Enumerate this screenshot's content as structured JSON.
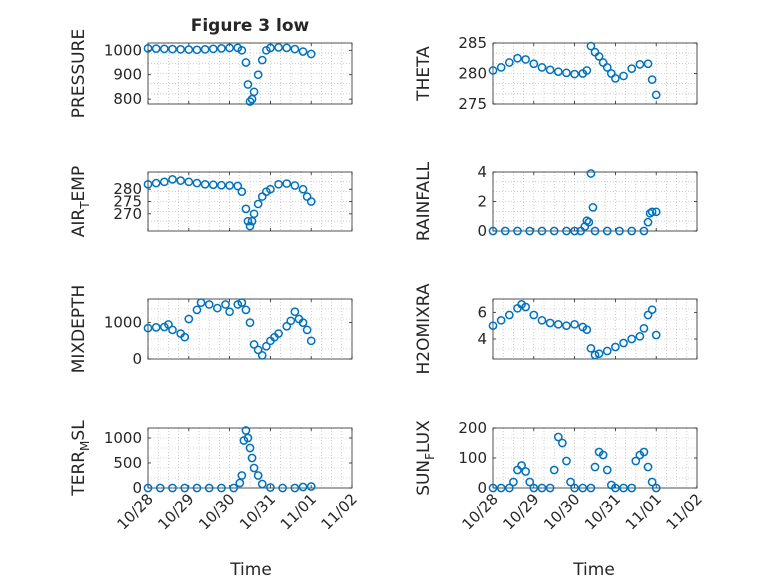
{
  "title": "Figure 3 low",
  "xlabel": "Time",
  "colors": {
    "marker": "#0072BD",
    "axis": "#262626",
    "grid": "#b0b0b0"
  },
  "chart_data": [
    {
      "type": "scatter",
      "ylabel": "PRESSURE",
      "ylim": [
        780,
        1030
      ],
      "yticks": [
        800,
        900,
        1000
      ],
      "ytick_labels": [
        "800",
        "900",
        "1000"
      ],
      "x": [
        0,
        0.2,
        0.4,
        0.6,
        0.8,
        1.0,
        1.2,
        1.4,
        1.6,
        1.8,
        2.0,
        2.2,
        2.3,
        2.4,
        2.45,
        2.5,
        2.55,
        2.6,
        2.7,
        2.8,
        2.9,
        3.0,
        3.2,
        3.4,
        3.6,
        3.8,
        4.0
      ],
      "y": [
        1008,
        1007,
        1006,
        1005,
        1004,
        1003,
        1002,
        1004,
        1006,
        1008,
        1010,
        1010,
        1000,
        950,
        860,
        790,
        800,
        830,
        900,
        960,
        1000,
        1010,
        1012,
        1010,
        1005,
        995,
        985
      ]
    },
    {
      "type": "scatter",
      "ylabel": "THETA",
      "ylim": [
        275,
        285
      ],
      "yticks": [
        275,
        280,
        285
      ],
      "ytick_labels": [
        "275",
        "280",
        "285"
      ],
      "x": [
        0,
        0.2,
        0.4,
        0.6,
        0.8,
        1.0,
        1.2,
        1.4,
        1.6,
        1.8,
        2.0,
        2.2,
        2.3,
        2.4,
        2.5,
        2.6,
        2.7,
        2.8,
        2.9,
        3.0,
        3.2,
        3.4,
        3.6,
        3.8,
        3.9,
        4.0
      ],
      "y": [
        280.5,
        281,
        281.8,
        282.5,
        282.3,
        281.6,
        281,
        280.6,
        280.3,
        280.1,
        279.9,
        280,
        280.5,
        284.5,
        283.5,
        282.8,
        281.8,
        281,
        280,
        279.2,
        279.6,
        280.8,
        281.5,
        281.6,
        279,
        276.5
      ]
    },
    {
      "type": "scatter",
      "ylabel": "AIR_TEMP",
      "ylim": [
        263,
        287
      ],
      "yticks": [
        270,
        275,
        280
      ],
      "ytick_labels": [
        "270",
        "275",
        "280"
      ],
      "x": [
        0,
        0.2,
        0.4,
        0.6,
        0.8,
        1.0,
        1.2,
        1.4,
        1.6,
        1.8,
        2.0,
        2.2,
        2.3,
        2.4,
        2.45,
        2.5,
        2.55,
        2.6,
        2.7,
        2.8,
        2.9,
        3.0,
        3.2,
        3.4,
        3.6,
        3.8,
        3.9,
        4.0
      ],
      "y": [
        282,
        282.5,
        283,
        284,
        283.5,
        283,
        282.5,
        282,
        281.8,
        281.6,
        281.5,
        281.3,
        279,
        272,
        267,
        265,
        267,
        270,
        274,
        277,
        279,
        280,
        282,
        282.3,
        281.5,
        280,
        277,
        275
      ]
    },
    {
      "type": "scatter",
      "ylabel": "RAINFALL",
      "ylim": [
        0,
        4
      ],
      "yticks": [
        0,
        2,
        4
      ],
      "ytick_labels": [
        "0",
        "2",
        "4"
      ],
      "x": [
        0,
        0.3,
        0.6,
        0.9,
        1.2,
        1.5,
        1.8,
        2.0,
        2.15,
        2.25,
        2.3,
        2.35,
        2.4,
        2.45,
        2.5,
        2.8,
        3.1,
        3.4,
        3.7,
        3.8,
        3.85,
        3.9,
        4.0
      ],
      "y": [
        0,
        0,
        0,
        0,
        0,
        0,
        0,
        0,
        0,
        0.3,
        0.7,
        0.6,
        3.9,
        1.6,
        0,
        0,
        0,
        0,
        0,
        0.6,
        1.2,
        1.3,
        1.3
      ]
    },
    {
      "type": "scatter",
      "ylabel": "MIXDEPTH",
      "ylim": [
        0,
        1650
      ],
      "yticks": [
        0,
        1000
      ],
      "ytick_labels": [
        "0",
        "1000"
      ],
      "x": [
        0,
        0.2,
        0.4,
        0.5,
        0.6,
        0.8,
        0.9,
        1.0,
        1.2,
        1.3,
        1.5,
        1.7,
        1.9,
        2.0,
        2.2,
        2.3,
        2.4,
        2.5,
        2.6,
        2.7,
        2.8,
        2.9,
        3.0,
        3.1,
        3.2,
        3.4,
        3.5,
        3.6,
        3.7,
        3.8,
        3.9,
        4.0
      ],
      "y": [
        850,
        870,
        880,
        950,
        800,
        700,
        600,
        1100,
        1350,
        1550,
        1500,
        1400,
        1500,
        1300,
        1500,
        1550,
        1350,
        1000,
        400,
        250,
        100,
        350,
        500,
        600,
        700,
        900,
        1050,
        1300,
        1100,
        1000,
        800,
        500
      ]
    },
    {
      "type": "scatter",
      "ylabel": "H2OMIXRA",
      "ylim": [
        2.5,
        7
      ],
      "yticks": [
        4,
        6
      ],
      "ytick_labels": [
        "4",
        "6"
      ],
      "x": [
        0,
        0.2,
        0.4,
        0.6,
        0.7,
        0.8,
        1.0,
        1.2,
        1.4,
        1.6,
        1.8,
        2.0,
        2.2,
        2.3,
        2.4,
        2.5,
        2.6,
        2.8,
        3.0,
        3.2,
        3.4,
        3.6,
        3.7,
        3.8,
        3.9,
        4.0
      ],
      "y": [
        5,
        5.4,
        5.8,
        6.3,
        6.6,
        6.4,
        5.8,
        5.4,
        5.2,
        5.1,
        5,
        5.1,
        4.9,
        4.7,
        3.3,
        2.8,
        2.9,
        3.1,
        3.4,
        3.7,
        4,
        4.2,
        4.8,
        5.8,
        6.2,
        4.3
      ]
    },
    {
      "type": "scatter",
      "ylabel": "TERR_MSL",
      "ylim": [
        0,
        1200
      ],
      "yticks": [
        0,
        500,
        1000
      ],
      "ytick_labels": [
        "0",
        "500",
        "1000"
      ],
      "x": [
        0,
        0.3,
        0.6,
        0.9,
        1.2,
        1.5,
        1.8,
        2.1,
        2.25,
        2.3,
        2.35,
        2.4,
        2.45,
        2.5,
        2.55,
        2.6,
        2.7,
        2.8,
        3.0,
        3.3,
        3.6,
        3.8,
        4.0
      ],
      "y": [
        0,
        0,
        0,
        0,
        0,
        0,
        0,
        0,
        100,
        250,
        950,
        1150,
        1000,
        800,
        600,
        400,
        250,
        80,
        10,
        0,
        0,
        20,
        30
      ]
    },
    {
      "type": "scatter",
      "ylabel": "SUN_FLUX",
      "ylim": [
        0,
        200
      ],
      "yticks": [
        0,
        100,
        200
      ],
      "ytick_labels": [
        "0",
        "100",
        "200"
      ],
      "x": [
        0,
        0.2,
        0.4,
        0.5,
        0.6,
        0.7,
        0.8,
        0.9,
        1.0,
        1.2,
        1.4,
        1.5,
        1.6,
        1.7,
        1.8,
        1.9,
        2.0,
        2.2,
        2.4,
        2.5,
        2.6,
        2.7,
        2.8,
        2.9,
        3.0,
        3.2,
        3.4,
        3.5,
        3.6,
        3.7,
        3.8,
        3.9,
        4.0
      ],
      "y": [
        0,
        0,
        0,
        20,
        60,
        75,
        55,
        20,
        0,
        0,
        0,
        60,
        170,
        150,
        90,
        20,
        0,
        0,
        0,
        70,
        120,
        110,
        60,
        10,
        0,
        0,
        0,
        90,
        110,
        120,
        70,
        20,
        0
      ]
    }
  ],
  "x_axis": {
    "xlim": [
      0,
      5
    ],
    "ticks": [
      0,
      1,
      2,
      3,
      4,
      5
    ],
    "tick_labels": [
      "10/28",
      "10/29",
      "10/30",
      "10/31",
      "11/01",
      "11/02"
    ]
  }
}
